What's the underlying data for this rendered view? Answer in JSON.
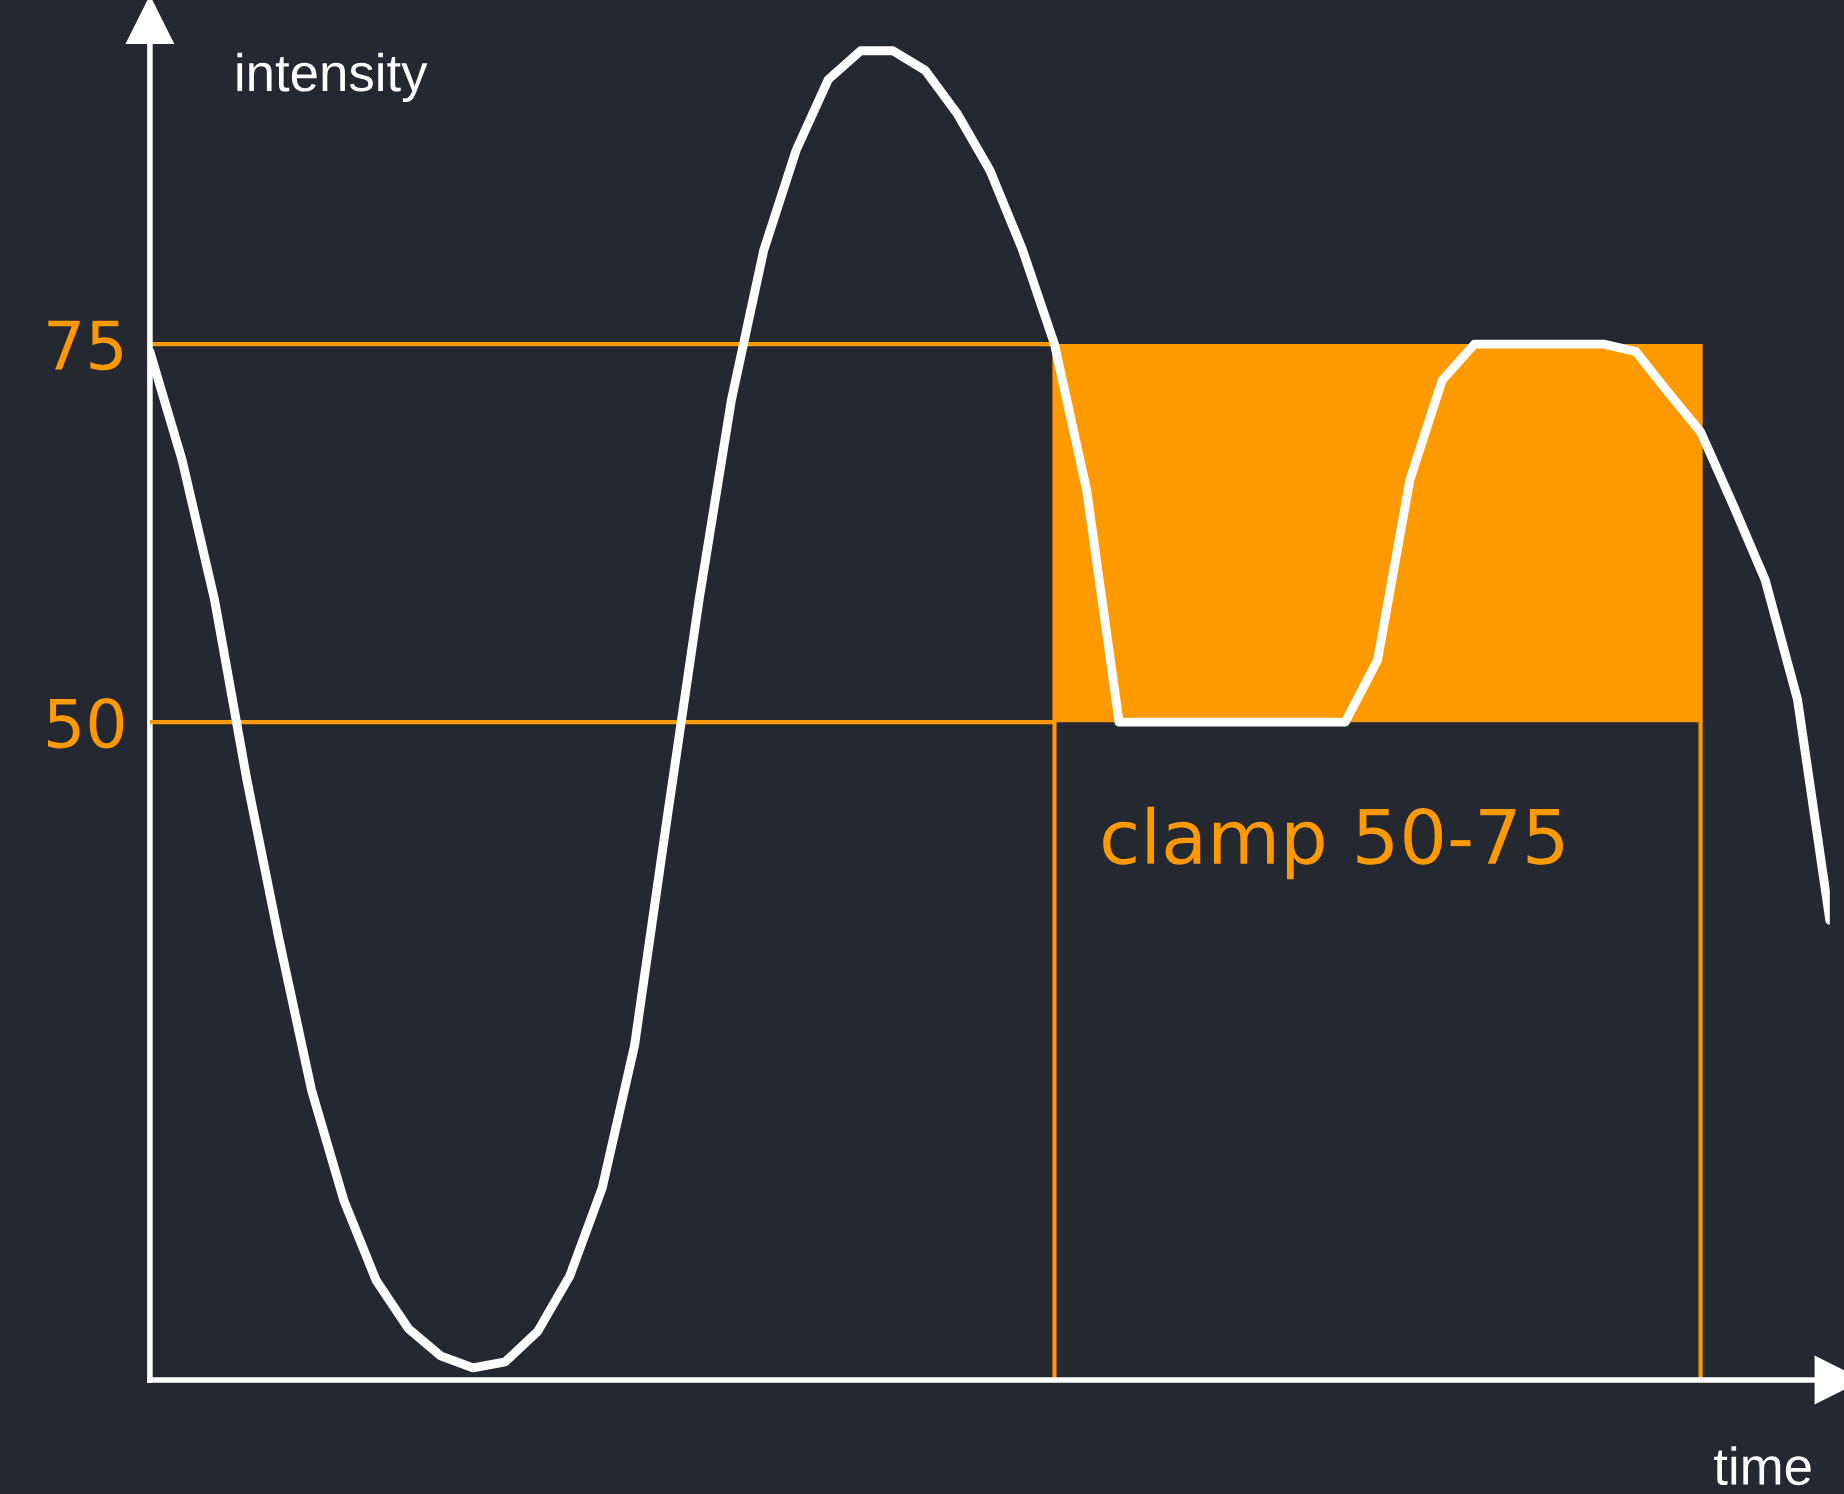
{
  "chart_data": {
    "type": "line",
    "xlabel": "time",
    "ylabel": "intensity",
    "categories": [
      null,
      null,
      null,
      null,
      null,
      null,
      null,
      null,
      null,
      null,
      null,
      null,
      null,
      null,
      null,
      null,
      null,
      null,
      null,
      null,
      null,
      null,
      null,
      null,
      null,
      null,
      null,
      null,
      null,
      null,
      null,
      null,
      null,
      null,
      null,
      null,
      null,
      null,
      null,
      null,
      null,
      null,
      null,
      null,
      null,
      null,
      null,
      null,
      null,
      null,
      null,
      null,
      null
    ],
    "series": [
      {
        "type": "line",
        "color": "#ff9900",
        "values": [
          75,
          75,
          75,
          75,
          75,
          75,
          75,
          75,
          75,
          75,
          75,
          75,
          75,
          75,
          75,
          75,
          75,
          75,
          75,
          75,
          75,
          75,
          75,
          75,
          75,
          75,
          75,
          75,
          75,
          null,
          null,
          null,
          null,
          null,
          null,
          null,
          null,
          null,
          null,
          null,
          null,
          null,
          null,
          null,
          null,
          null,
          null,
          null,
          null,
          null,
          null,
          null,
          null
        ]
      },
      {
        "type": "line",
        "color": "#ff9900",
        "values": [
          50,
          50,
          50,
          50,
          50,
          50,
          50,
          50,
          50,
          50,
          50,
          50,
          50,
          50,
          50,
          50,
          50,
          50,
          50,
          50,
          50,
          50,
          50,
          50,
          50,
          50,
          50,
          50,
          50,
          null,
          null,
          null,
          null,
          null,
          null,
          null,
          null,
          null,
          null,
          null,
          null,
          null,
          null,
          null,
          null,
          null,
          null,
          null,
          null,
          null,
          null,
          null,
          null
        ]
      },
      {
        "color": "#ffffff",
        "values": [
          74.5,
          67.3,
          58.1,
          46.2,
          35.6,
          25.7,
          18.4,
          13.1,
          9.9,
          8.1,
          7.3,
          7.7,
          9.7,
          13.4,
          19.2,
          28.6,
          43.5,
          58.1,
          71.3,
          81.2,
          87.8,
          92.5,
          94.4,
          94.4,
          93.1,
          90.2,
          86.5,
          81.3,
          75,
          65.3,
          50,
          50,
          50,
          50,
          50,
          50,
          50,
          50,
          54.1,
          66.0,
          72.6,
          75,
          75,
          75,
          75,
          75,
          74.5,
          71.8,
          69.2,
          64.4,
          59.4,
          51.5,
          36.9
        ]
      }
    ],
    "bands": [
      {
        "axis": "y",
        "from": 50,
        "to": 75,
        "color": "#ff9900"
      }
    ],
    "ylim": [
      6.5,
      96.4
    ],
    "yticks": [
      50,
      75
    ],
    "tick_labels": "y",
    "grid": false,
    "legend": false,
    "marker": "none",
    "line_style": "solid",
    "annotations": [
      "clamp 50-75"
    ]
  }
}
